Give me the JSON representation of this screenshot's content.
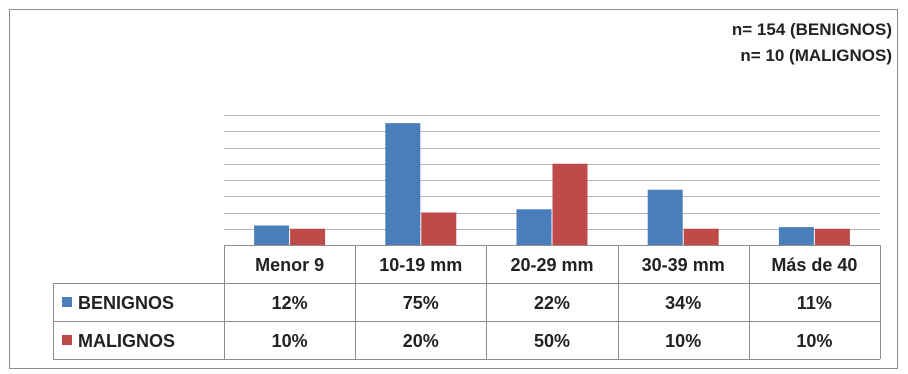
{
  "notes": {
    "line1": "n= 154 (BENIGNOS)",
    "line2": "n= 10 (MALIGNOS)"
  },
  "chart_data": {
    "type": "bar",
    "categories": [
      "Menor 9",
      "10-19 mm",
      "20-29 mm",
      "30-39 mm",
      "Más de 40"
    ],
    "series": [
      {
        "name": "BENIGNOS",
        "color": "#4a7ebb",
        "values": [
          12,
          75,
          22,
          34,
          11
        ],
        "labels": [
          "12%",
          "75%",
          "22%",
          "34%",
          "11%"
        ]
      },
      {
        "name": "MALIGNOS",
        "color": "#be4b48",
        "values": [
          10,
          20,
          50,
          10,
          10
        ],
        "labels": [
          "10%",
          "20%",
          "50%",
          "10%",
          "10%"
        ]
      }
    ],
    "ylim": [
      0,
      80
    ],
    "grid": true,
    "legend": "data-table"
  }
}
